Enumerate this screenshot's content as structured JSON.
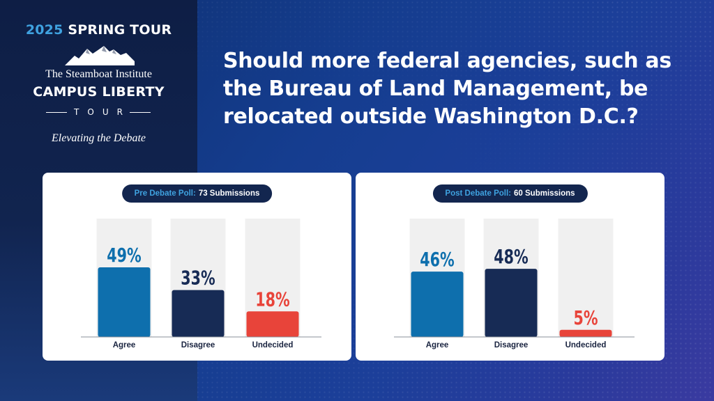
{
  "header": {
    "tour_year": "2025",
    "tour_season": "SPRING TOUR",
    "org_name": "The Steamboat Institute",
    "program": "CAMPUS LIBERTY",
    "tour_word": "TOUR",
    "tagline": "Elevating the Debate"
  },
  "question": "Should more federal agencies, such as the Bureau of Land Management, be relocated outside Washington D.C.?",
  "colors": {
    "agree": "#0e6fad",
    "disagree": "#172b55",
    "undecided": "#e8443a",
    "track": "#f0f0f0",
    "accent": "#3fa2e0"
  },
  "polls": [
    {
      "label": "Pre Debate Poll:",
      "count": "73 Submissions"
    },
    {
      "label": "Post Debate Poll:",
      "count": "60 Submissions"
    }
  ],
  "chart_data": [
    {
      "type": "bar",
      "title": "Pre Debate Poll: 73 Submissions",
      "categories": [
        "Agree",
        "Disagree",
        "Undecided"
      ],
      "values": [
        49,
        33,
        18
      ],
      "labels": [
        "49%",
        "33%",
        "18%"
      ],
      "unit": "%",
      "ylim": [
        0,
        100
      ]
    },
    {
      "type": "bar",
      "title": "Post Debate Poll: 60 Submissions",
      "categories": [
        "Agree",
        "Disagree",
        "Undecided"
      ],
      "values": [
        46,
        48,
        5
      ],
      "labels": [
        "46%",
        "48%",
        "5%"
      ],
      "unit": "%",
      "ylim": [
        0,
        100
      ]
    }
  ]
}
